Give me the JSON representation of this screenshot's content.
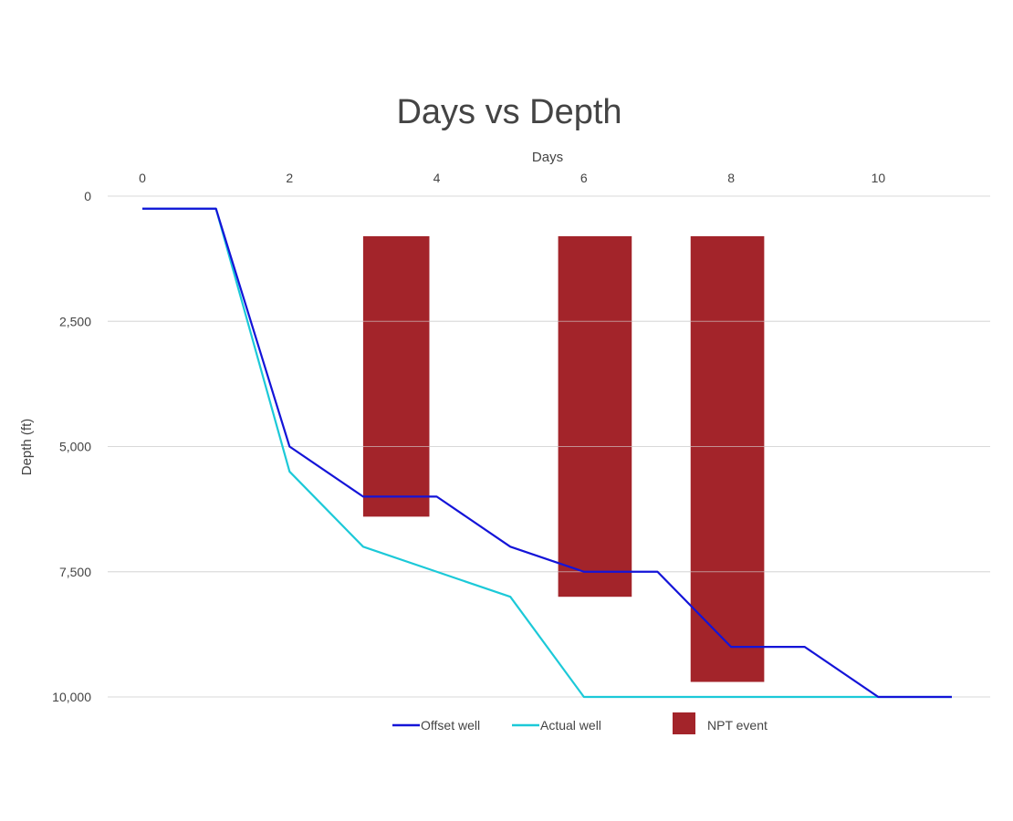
{
  "chart_data": {
    "type": "line",
    "title": "Days vs Depth",
    "xlabel": "Days",
    "ylabel": "Depth (ft)",
    "xlim": [
      0,
      11
    ],
    "ylim": [
      0,
      10000
    ],
    "y_inverted": true,
    "x_axis_position": "top",
    "x_ticks": [
      "0",
      "2",
      "4",
      "6",
      "8",
      "10"
    ],
    "y_ticks": [
      "0",
      "2,500",
      "5,000",
      "7,500",
      "10,000"
    ],
    "grid": "horizontal",
    "legend_position": "bottom",
    "series": [
      {
        "name": "Offset well",
        "color": "#1414d8",
        "x": [
          0,
          1,
          2,
          3,
          4,
          5,
          6,
          7,
          8,
          9,
          10,
          11
        ],
        "y": [
          250,
          250,
          5000,
          6000,
          6000,
          7000,
          7500,
          7500,
          9000,
          9000,
          10000,
          10000
        ]
      },
      {
        "name": "Actual well",
        "color": "#1cc9d8",
        "x": [
          0,
          1,
          2,
          3,
          4,
          5,
          6,
          7,
          8,
          9,
          10,
          11
        ],
        "y": [
          250,
          250,
          5500,
          7000,
          7500,
          8000,
          10000,
          10000,
          10000,
          10000,
          10000,
          10000
        ]
      }
    ],
    "npt_events": {
      "name": "NPT event",
      "color": "#a3242a",
      "bars": [
        {
          "x_start": 3.0,
          "x_end": 3.9,
          "depth_top": 800,
          "depth_bottom": 6400
        },
        {
          "x_start": 5.65,
          "x_end": 6.65,
          "depth_top": 800,
          "depth_bottom": 8000
        },
        {
          "x_start": 7.45,
          "x_end": 8.45,
          "depth_top": 800,
          "depth_bottom": 9700
        }
      ]
    }
  }
}
